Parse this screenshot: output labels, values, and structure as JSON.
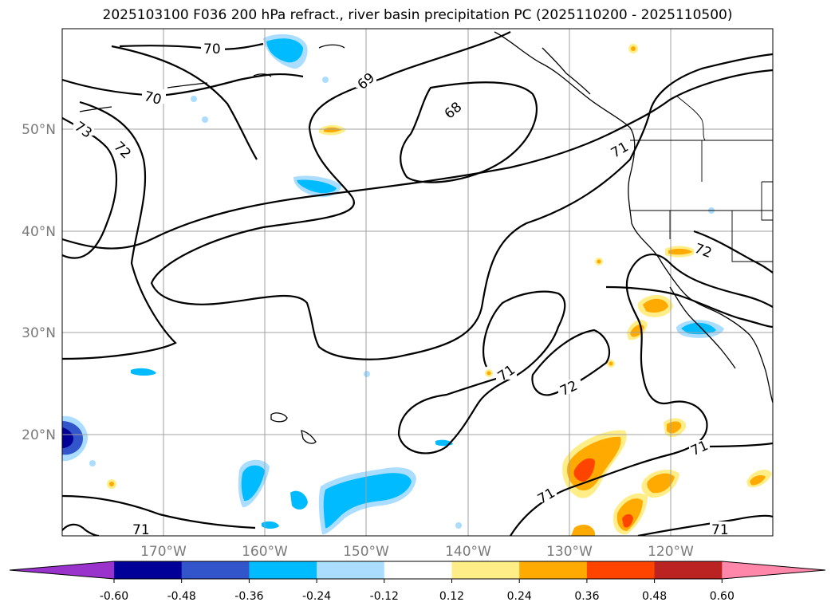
{
  "title": "2025103100 F036 200 hPa refract., river basin precipitation PC (2025110200 - 2025110500)",
  "map": {
    "lat_labels": [
      "50°N",
      "40°N",
      "30°N",
      "20°N"
    ],
    "lon_labels": [
      "170°W",
      "160°W",
      "150°W",
      "140°W",
      "130°W",
      "120°W"
    ],
    "gridlines": true,
    "contour_labels": [
      "70",
      "70",
      "69",
      "68",
      "73",
      "72",
      "71",
      "72",
      "71",
      "72",
      "71",
      "71",
      "71",
      "71"
    ]
  },
  "colorbar": {
    "tick_labels": [
      "-0.60",
      "-0.48",
      "-0.36",
      "-0.24",
      "-0.12",
      "0.12",
      "0.24",
      "0.36",
      "0.48",
      "0.60"
    ],
    "colors": [
      "#9933cc",
      "#000099",
      "#3355cc",
      "#00bbff",
      "#aaddff",
      "#ffffff",
      "#ffee88",
      "#ffaa00",
      "#ff4400",
      "#bb2222",
      "#ff88aa"
    ]
  }
}
